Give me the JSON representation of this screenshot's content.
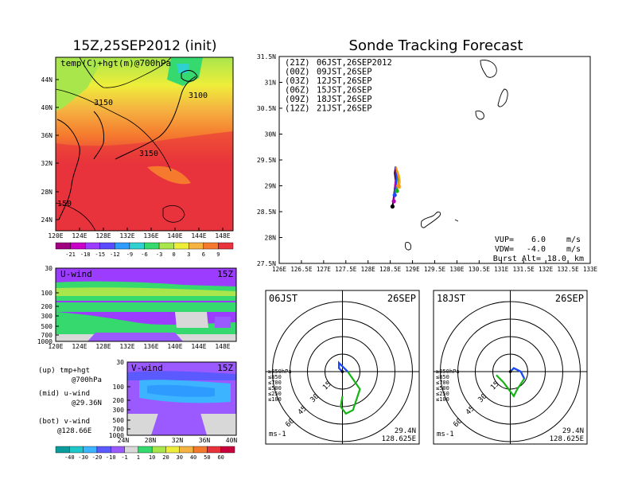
{
  "left_title": "15Z,25SEP2012 (init)",
  "right_title": "Sonde Tracking Forecast",
  "map_panel": {
    "label": "temp(C)+hgt(m)@700hPa",
    "contours": [
      "3100",
      "3150",
      "3150",
      "3100",
      "150"
    ],
    "lat_ticks": [
      "44N",
      "40N",
      "36N",
      "32N",
      "28N",
      "24N"
    ],
    "lon_ticks": [
      "120E",
      "124E",
      "128E",
      "132E",
      "136E",
      "140E",
      "144E",
      "148E"
    ],
    "colorbar": {
      "labels": [
        "-21",
        "-18",
        "-15",
        "-12",
        "-9",
        "-6",
        "-3",
        "0",
        "3",
        "6",
        "9"
      ],
      "colors": [
        "#a0007f",
        "#c800c8",
        "#9b3cff",
        "#5a4bff",
        "#2d9bff",
        "#2ed0d0",
        "#36d96e",
        "#a8e64c",
        "#eeee3a",
        "#f5b341",
        "#f57a2e",
        "#e8323c"
      ]
    }
  },
  "u_panel": {
    "label": "U-wind",
    "time": "15Z",
    "p_ticks": [
      "30",
      "100",
      "200",
      "300",
      "500",
      "700",
      "1000"
    ],
    "lon_ticks": [
      "120E",
      "124E",
      "128E",
      "132E",
      "136E",
      "140E",
      "144E",
      "148E"
    ]
  },
  "v_panel": {
    "label": "V-wind",
    "time": "15Z",
    "p_ticks": [
      "30",
      "100",
      "200",
      "300",
      "500",
      "700",
      "1000"
    ],
    "lat_ticks": [
      "24N",
      "28N",
      "32N",
      "36N",
      "40N"
    ]
  },
  "side_notes": [
    {
      "title": "(up) tmp+hgt",
      "detail": "@700hPa"
    },
    {
      "title": "(mid) u-wind",
      "detail": "@29.36N"
    },
    {
      "title": "(bot) v-wind",
      "detail": "@128.66E"
    }
  ],
  "wind_colorbar": {
    "labels": [
      "-40",
      "-30",
      "-20",
      "-10",
      "-1",
      "1",
      "10",
      "20",
      "30",
      "40",
      "50",
      "60"
    ],
    "colors": [
      "#0a9c9c",
      "#1ec8c8",
      "#3cb4ff",
      "#5a5aff",
      "#9b5aff",
      "#d8d8d8",
      "#36d96e",
      "#a8e64c",
      "#eeee3a",
      "#f5b341",
      "#f57a2e",
      "#e8323c",
      "#c8003c"
    ]
  },
  "tracking_panel": {
    "legend": [
      {
        "code": "(21Z)",
        "time": "06JST,26SEP2012",
        "color": "#000000"
      },
      {
        "code": "(00Z)",
        "time": "09JST,26SEP",
        "color": "#b400b4"
      },
      {
        "code": "(03Z)",
        "time": "12JST,26SEP",
        "color": "#1e46ff"
      },
      {
        "code": "(06Z)",
        "time": "15JST,26SEP",
        "color": "#14b414"
      },
      {
        "code": "(09Z)",
        "time": "18JST,26SEP",
        "color": "#e6c81e"
      },
      {
        "code": "(12Z)",
        "time": "21JST,26SEP",
        "color": "#ff8c1e"
      }
    ],
    "lat_ticks": [
      "31.5N",
      "31N",
      "30.5N",
      "30N",
      "29.5N",
      "29N",
      "28.5N",
      "28N",
      "27.5N"
    ],
    "lon_ticks": [
      "126E",
      "126.5E",
      "127E",
      "127.5E",
      "128E",
      "128.5E",
      "129E",
      "129.5E",
      "130E",
      "130.5E",
      "131E",
      "131.5E",
      "132E",
      "132.5E",
      "133E"
    ],
    "params": [
      {
        "name": "VUP=",
        "value": "6.0",
        "unit": "m/s"
      },
      {
        "name": "VDW=",
        "value": "-4.0",
        "unit": "m/s"
      },
      {
        "name": "Burst Alt=",
        "value": "18.0",
        "unit": "km"
      }
    ]
  },
  "hodographs": [
    {
      "time": "06JST",
      "date": "26SEP",
      "unit": "ms-1",
      "lat": "29.4N",
      "lon": "128.625E",
      "ring_labels": [
        "15",
        "30",
        "45",
        "60"
      ],
      "levels": [
        "≥850hPa",
        "≤850",
        "≤700",
        "≤500",
        "≤250",
        "≤100"
      ]
    },
    {
      "time": "18JST",
      "date": "26SEP",
      "unit": "ms-1",
      "lat": "29.4N",
      "lon": "128.625E",
      "ring_labels": [
        "15",
        "30",
        "45",
        "60"
      ],
      "levels": [
        "≥850hPa",
        "≤850",
        "≤700",
        "≤500",
        "≤250",
        "≤100"
      ]
    }
  ],
  "chart_data": [
    {
      "type": "heatmap",
      "title": "15Z,25SEP2012 (init)",
      "subtitle": "temp(C)+hgt(m)@700hPa",
      "xlim": [
        120,
        150
      ],
      "ylim": [
        22,
        47
      ],
      "colorbar_levels": [
        -21,
        -18,
        -15,
        -12,
        -9,
        -6,
        -3,
        0,
        3,
        6,
        9
      ]
    },
    {
      "type": "line",
      "title": "Sonde Tracking Forecast",
      "xlim": [
        126,
        133
      ],
      "ylim": [
        27.5,
        31.5
      ],
      "series": [
        {
          "name": "(21Z) 06JST,26SEP2012",
          "color": "#000000",
          "x": [
            128.62,
            128.6,
            128.62,
            128.6,
            128.58,
            128.55
          ],
          "y": [
            29.37,
            29.25,
            29.1,
            28.95,
            28.8,
            28.6
          ]
        },
        {
          "name": "(00Z) 09JST,26SEP",
          "color": "#b400b4",
          "x": [
            128.62,
            128.63,
            128.6,
            128.58
          ],
          "y": [
            29.35,
            29.15,
            28.95,
            28.7
          ]
        },
        {
          "name": "(03Z) 12JST,26SEP",
          "color": "#1e46ff",
          "x": [
            128.62,
            128.65,
            128.63,
            128.6
          ],
          "y": [
            29.36,
            29.2,
            29.0,
            28.82
          ]
        },
        {
          "name": "(06Z) 15JST,26SEP",
          "color": "#14b414",
          "x": [
            128.63,
            128.68,
            128.68,
            128.65
          ],
          "y": [
            29.36,
            29.2,
            29.05,
            28.9
          ]
        },
        {
          "name": "(09Z) 18JST,26SEP",
          "color": "#e6c81e",
          "x": [
            128.63,
            128.7,
            128.72,
            128.7
          ],
          "y": [
            29.35,
            29.2,
            29.08,
            28.98
          ]
        },
        {
          "name": "(12Z) 21JST,26SEP",
          "color": "#ff8c1e",
          "x": [
            128.63,
            128.66,
            128.7,
            128.68
          ],
          "y": [
            29.36,
            29.25,
            29.12,
            29.0
          ]
        }
      ],
      "annotations": [
        "VUP= 6.0 m/s",
        "VDW= -4.0 m/s",
        "Burst Alt= 18.0 km"
      ]
    },
    {
      "type": "line",
      "title": "06JST 26SEP",
      "xlabel": "ms-1",
      "series": [
        {
          "name": "06JST",
          "color": "#1e46ff",
          "u": [
            0,
            -2,
            -2,
            3,
            10,
            6,
            2,
            -1,
            0
          ],
          "v": [
            0,
            2,
            5,
            0,
            -10,
            -22,
            -24,
            -20,
            -14
          ]
        }
      ]
    },
    {
      "type": "line",
      "title": "18JST 26SEP",
      "xlabel": "ms-1",
      "series": [
        {
          "name": "18JST",
          "color": "#1e46ff",
          "u": [
            0,
            2,
            6,
            8,
            4,
            2,
            -4,
            -8
          ],
          "v": [
            0,
            2,
            0,
            -4,
            -10,
            -14,
            -6,
            -2
          ]
        }
      ]
    }
  ]
}
